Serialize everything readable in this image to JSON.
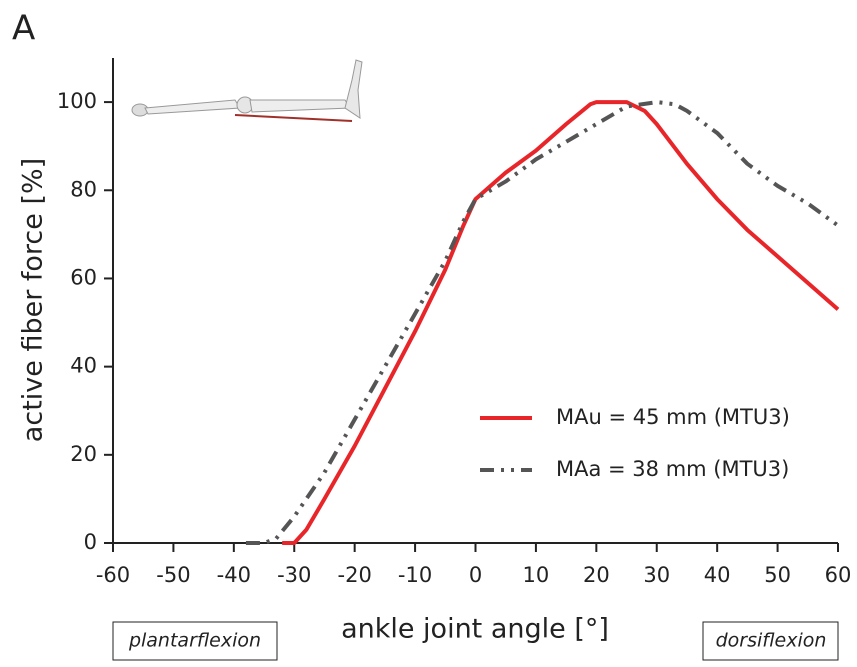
{
  "chart_data": {
    "type": "line",
    "panel_label": "A",
    "xlabel": "ankle joint angle [°]",
    "ylabel": "active fiber force [%]",
    "annotations": [
      "plantarflexion",
      "dorsiflexion"
    ],
    "xlim": [
      -60,
      60
    ],
    "xticks": [
      -60,
      -50,
      -40,
      -30,
      -20,
      -10,
      0,
      10,
      20,
      30,
      40,
      50,
      60
    ],
    "ylim": [
      0,
      110
    ],
    "yticks": [
      0,
      20,
      40,
      60,
      80,
      100
    ],
    "legend": "right",
    "series": [
      {
        "name": "MAu = 45 mm (MTU3)",
        "color": "#e8262a",
        "dash": "solid",
        "x": [
          -32,
          -30,
          -28,
          -25,
          -20,
          -15,
          -10,
          -5,
          -2,
          0,
          5,
          10,
          15,
          19,
          20,
          25,
          28,
          30,
          35,
          40,
          45,
          50,
          55,
          60
        ],
        "values": [
          0,
          0,
          3,
          10,
          22,
          35,
          48,
          62,
          72,
          78,
          84,
          89,
          95,
          99.5,
          100,
          100,
          98,
          95,
          86,
          78,
          71,
          65,
          59,
          53
        ]
      },
      {
        "name": "MAa = 38 mm (MTU3)",
        "color": "#555555",
        "dash": "dash-dot-dot",
        "x": [
          -38,
          -35,
          -33,
          -30,
          -25,
          -20,
          -15,
          -10,
          -5,
          -2,
          0,
          5,
          10,
          15,
          20,
          25,
          30,
          33,
          35,
          40,
          45,
          50,
          55,
          60
        ],
        "values": [
          0,
          0,
          1,
          6,
          16,
          28,
          40,
          52,
          64,
          73,
          78,
          82,
          87,
          91,
          95,
          99,
          100,
          99.5,
          98,
          93,
          86,
          81,
          77,
          72
        ]
      }
    ]
  }
}
